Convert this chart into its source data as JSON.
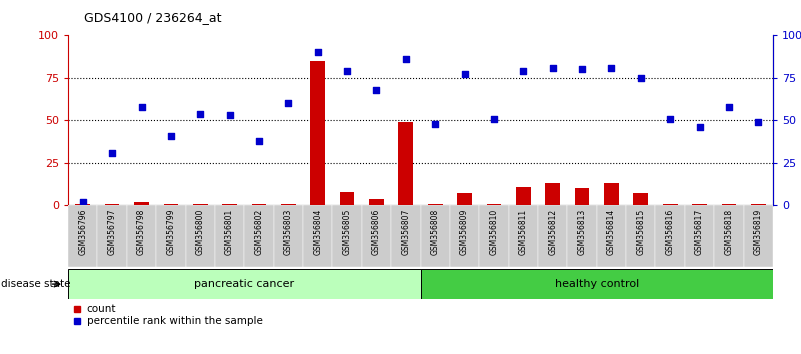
{
  "title": "GDS4100 / 236264_at",
  "samples": [
    "GSM356796",
    "GSM356797",
    "GSM356798",
    "GSM356799",
    "GSM356800",
    "GSM356801",
    "GSM356802",
    "GSM356803",
    "GSM356804",
    "GSM356805",
    "GSM356806",
    "GSM356807",
    "GSM356808",
    "GSM356809",
    "GSM356810",
    "GSM356811",
    "GSM356812",
    "GSM356813",
    "GSM356814",
    "GSM356815",
    "GSM356816",
    "GSM356817",
    "GSM356818",
    "GSM356819"
  ],
  "count_values": [
    0.5,
    1,
    2,
    1,
    1,
    1,
    1,
    1,
    85,
    8,
    4,
    49,
    1,
    7,
    1,
    11,
    13,
    10,
    13,
    7,
    1,
    1,
    1,
    1
  ],
  "percentile_values": [
    2,
    31,
    58,
    41,
    54,
    53,
    38,
    60,
    90,
    79,
    68,
    86,
    48,
    77,
    51,
    79,
    81,
    80,
    81,
    75,
    51,
    46,
    58,
    49
  ],
  "pc_group": {
    "label": "pancreatic cancer",
    "start": 0,
    "end": 11
  },
  "hc_group": {
    "label": "healthy control",
    "start": 12,
    "end": 23
  },
  "pc_color": "#bbffbb",
  "hc_color": "#44cc44",
  "disease_state_label": "disease state",
  "ylim": [
    0,
    100
  ],
  "yticks": [
    0,
    25,
    50,
    75,
    100
  ],
  "ytick_labels_left": [
    "0",
    "25",
    "50",
    "75",
    "100"
  ],
  "ytick_labels_right": [
    "0",
    "25",
    "50",
    "75",
    "100%"
  ],
  "bar_color": "#cc0000",
  "scatter_color": "#0000cc",
  "left_yaxis_color": "#cc0000",
  "right_yaxis_color": "#0000cc",
  "legend_count_label": "count",
  "legend_percentile_label": "percentile rank within the sample",
  "xtick_bg_color": "#cccccc"
}
